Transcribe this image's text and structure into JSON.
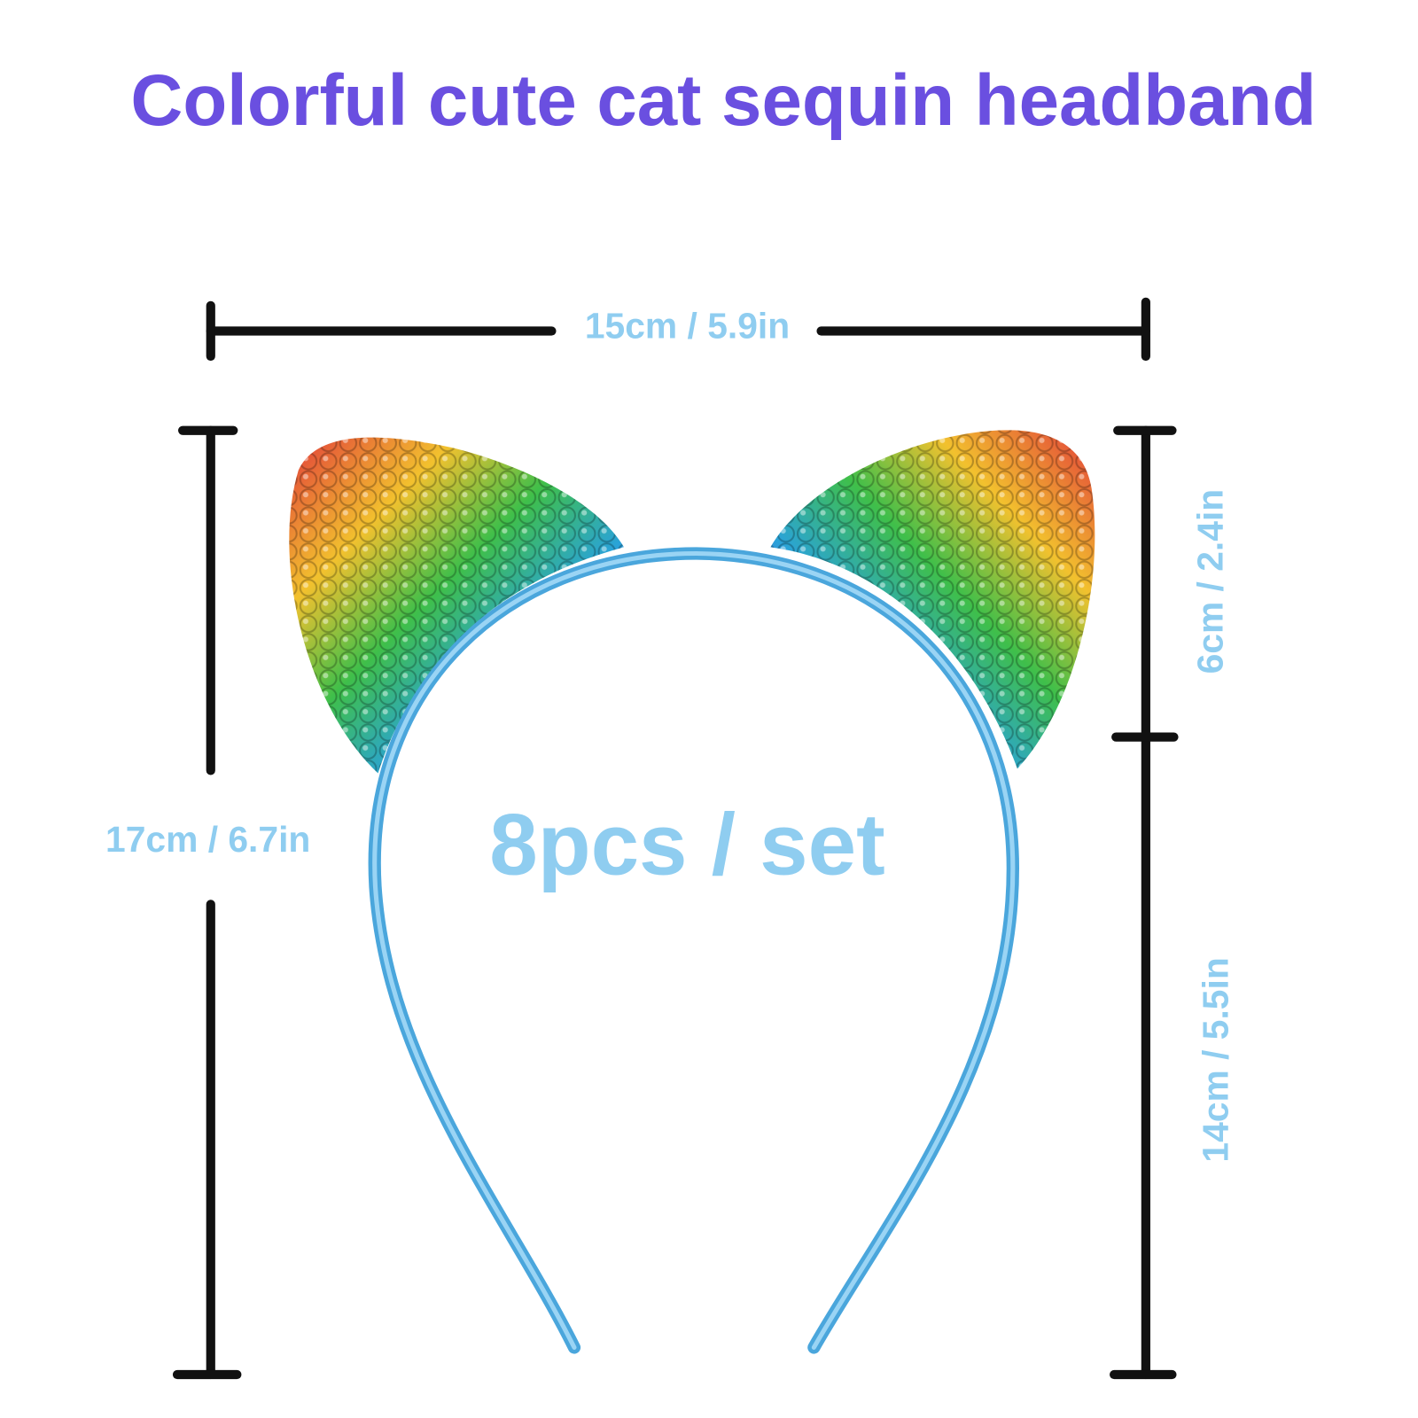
{
  "title": "Colorful cute cat sequin headband",
  "dimensions": {
    "width": "15cm / 5.9in",
    "total_height": "17cm / 6.7in",
    "ear_height": "6cm / 2.4in",
    "band_height": "14cm / 5.5in"
  },
  "quantity": "8pcs / set",
  "colors": {
    "title": "#6a4fe0",
    "label": "#8fcdf0",
    "headband": "#5ab4e6",
    "dimension_lines": "#111111"
  }
}
